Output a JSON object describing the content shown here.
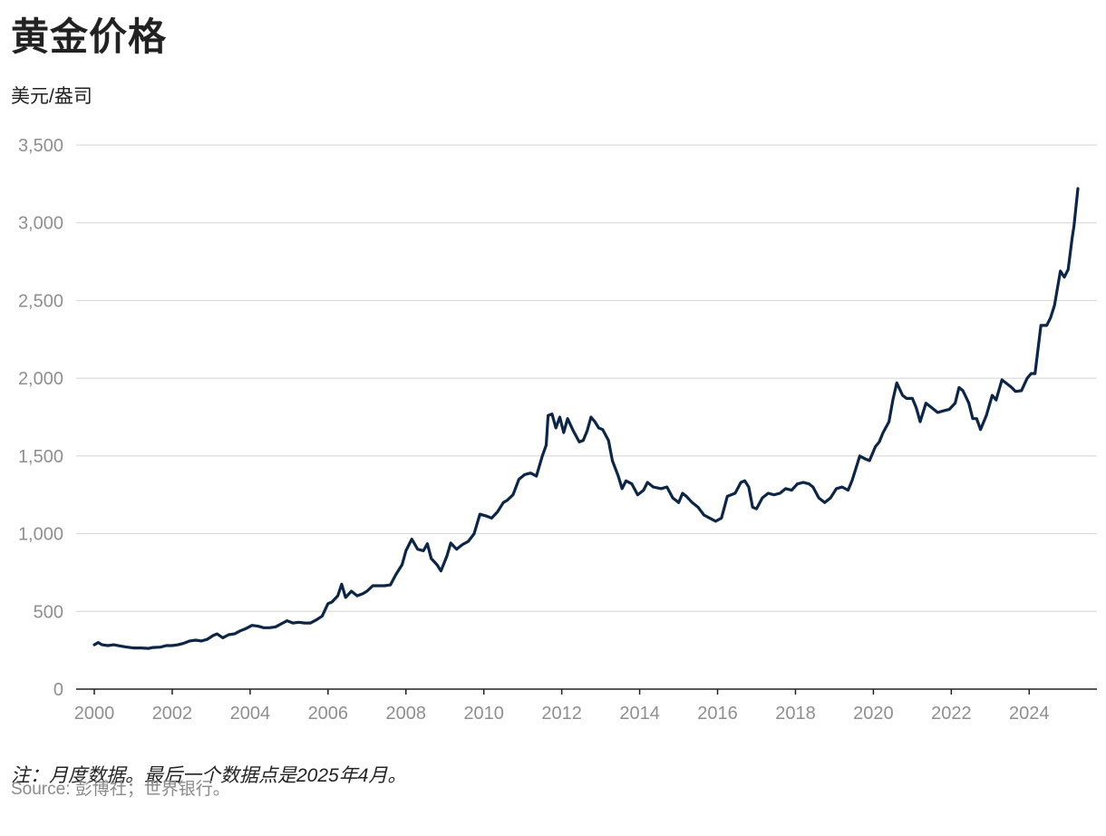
{
  "header": {
    "title": "黄金价格",
    "unit": "美元/盎司"
  },
  "footer": {
    "note": "注：月度数据。最后一个数据点是2025年4月。",
    "source_label": "Source:",
    "source_text": "彭博社；世界银行。"
  },
  "colors": {
    "line": "#0d2645",
    "grid": "#dcdcdc",
    "axis": "#222222",
    "tick_text": "#8f8f8f"
  },
  "chart_data": {
    "type": "line",
    "title": "黄金价格",
    "ylabel": "美元/盎司",
    "xlabel": "",
    "xlim": [
      2000.0,
      2025.25
    ],
    "ylim": [
      0,
      3500
    ],
    "x_ticks": [
      2000,
      2002,
      2004,
      2006,
      2008,
      2010,
      2012,
      2014,
      2016,
      2018,
      2020,
      2022,
      2024
    ],
    "y_ticks": [
      {
        "value": 0,
        "label": "0"
      },
      {
        "value": 500,
        "label": "500"
      },
      {
        "value": 1000,
        "label": "1,000"
      },
      {
        "value": 1500,
        "label": "1,500"
      },
      {
        "value": 2000,
        "label": "2,000"
      },
      {
        "value": 2500,
        "label": "2,500"
      },
      {
        "value": 3000,
        "label": "3,000"
      },
      {
        "value": 3500,
        "label": "3,500"
      }
    ],
    "grid": true,
    "legend": "none",
    "series": [
      {
        "name": "黄金价格",
        "points": [
          [
            2000.0,
            285
          ],
          [
            2000.1,
            300
          ],
          [
            2000.2,
            285
          ],
          [
            2000.35,
            280
          ],
          [
            2000.5,
            285
          ],
          [
            2000.65,
            278
          ],
          [
            2000.8,
            272
          ],
          [
            2001.0,
            265
          ],
          [
            2001.2,
            265
          ],
          [
            2001.4,
            262
          ],
          [
            2001.5,
            268
          ],
          [
            2001.7,
            270
          ],
          [
            2001.85,
            280
          ],
          [
            2002.0,
            280
          ],
          [
            2002.15,
            285
          ],
          [
            2002.3,
            295
          ],
          [
            2002.45,
            310
          ],
          [
            2002.6,
            315
          ],
          [
            2002.75,
            310
          ],
          [
            2002.9,
            320
          ],
          [
            2003.05,
            345
          ],
          [
            2003.15,
            355
          ],
          [
            2003.3,
            330
          ],
          [
            2003.45,
            350
          ],
          [
            2003.6,
            355
          ],
          [
            2003.75,
            375
          ],
          [
            2003.9,
            390
          ],
          [
            2004.05,
            410
          ],
          [
            2004.2,
            405
          ],
          [
            2004.35,
            395
          ],
          [
            2004.5,
            395
          ],
          [
            2004.65,
            400
          ],
          [
            2004.8,
            420
          ],
          [
            2004.95,
            440
          ],
          [
            2005.1,
            425
          ],
          [
            2005.25,
            430
          ],
          [
            2005.4,
            425
          ],
          [
            2005.55,
            425
          ],
          [
            2005.7,
            445
          ],
          [
            2005.85,
            470
          ],
          [
            2006.0,
            550
          ],
          [
            2006.1,
            560
          ],
          [
            2006.25,
            600
          ],
          [
            2006.35,
            675
          ],
          [
            2006.45,
            590
          ],
          [
            2006.6,
            630
          ],
          [
            2006.75,
            600
          ],
          [
            2006.9,
            615
          ],
          [
            2007.0,
            630
          ],
          [
            2007.15,
            665
          ],
          [
            2007.3,
            665
          ],
          [
            2007.45,
            665
          ],
          [
            2007.6,
            670
          ],
          [
            2007.75,
            740
          ],
          [
            2007.9,
            800
          ],
          [
            2008.0,
            890
          ],
          [
            2008.15,
            965
          ],
          [
            2008.3,
            900
          ],
          [
            2008.45,
            890
          ],
          [
            2008.55,
            935
          ],
          [
            2008.65,
            840
          ],
          [
            2008.8,
            800
          ],
          [
            2008.9,
            760
          ],
          [
            2009.05,
            855
          ],
          [
            2009.15,
            940
          ],
          [
            2009.3,
            900
          ],
          [
            2009.45,
            930
          ],
          [
            2009.6,
            950
          ],
          [
            2009.75,
            1000
          ],
          [
            2009.9,
            1125
          ],
          [
            2010.05,
            1115
          ],
          [
            2010.2,
            1100
          ],
          [
            2010.35,
            1140
          ],
          [
            2010.5,
            1200
          ],
          [
            2010.6,
            1215
          ],
          [
            2010.75,
            1250
          ],
          [
            2010.9,
            1350
          ],
          [
            2011.05,
            1380
          ],
          [
            2011.2,
            1390
          ],
          [
            2011.35,
            1370
          ],
          [
            2011.5,
            1500
          ],
          [
            2011.6,
            1570
          ],
          [
            2011.65,
            1760
          ],
          [
            2011.75,
            1770
          ],
          [
            2011.85,
            1680
          ],
          [
            2011.95,
            1750
          ],
          [
            2012.05,
            1650
          ],
          [
            2012.15,
            1740
          ],
          [
            2012.3,
            1660
          ],
          [
            2012.45,
            1590
          ],
          [
            2012.55,
            1600
          ],
          [
            2012.65,
            1660
          ],
          [
            2012.75,
            1750
          ],
          [
            2012.85,
            1720
          ],
          [
            2012.95,
            1680
          ],
          [
            2013.05,
            1670
          ],
          [
            2013.2,
            1600
          ],
          [
            2013.3,
            1470
          ],
          [
            2013.45,
            1370
          ],
          [
            2013.55,
            1290
          ],
          [
            2013.65,
            1340
          ],
          [
            2013.8,
            1320
          ],
          [
            2013.95,
            1250
          ],
          [
            2014.1,
            1280
          ],
          [
            2014.2,
            1330
          ],
          [
            2014.35,
            1300
          ],
          [
            2014.55,
            1290
          ],
          [
            2014.7,
            1300
          ],
          [
            2014.85,
            1230
          ],
          [
            2015.0,
            1200
          ],
          [
            2015.1,
            1260
          ],
          [
            2015.2,
            1240
          ],
          [
            2015.35,
            1200
          ],
          [
            2015.5,
            1170
          ],
          [
            2015.65,
            1120
          ],
          [
            2015.8,
            1100
          ],
          [
            2015.95,
            1080
          ],
          [
            2016.1,
            1100
          ],
          [
            2016.25,
            1240
          ],
          [
            2016.45,
            1260
          ],
          [
            2016.6,
            1330
          ],
          [
            2016.7,
            1340
          ],
          [
            2016.8,
            1300
          ],
          [
            2016.9,
            1170
          ],
          [
            2017.0,
            1160
          ],
          [
            2017.15,
            1230
          ],
          [
            2017.3,
            1260
          ],
          [
            2017.45,
            1250
          ],
          [
            2017.6,
            1260
          ],
          [
            2017.75,
            1290
          ],
          [
            2017.9,
            1280
          ],
          [
            2018.05,
            1320
          ],
          [
            2018.2,
            1330
          ],
          [
            2018.35,
            1320
          ],
          [
            2018.45,
            1300
          ],
          [
            2018.6,
            1230
          ],
          [
            2018.75,
            1200
          ],
          [
            2018.9,
            1230
          ],
          [
            2019.05,
            1290
          ],
          [
            2019.2,
            1300
          ],
          [
            2019.35,
            1280
          ],
          [
            2019.45,
            1340
          ],
          [
            2019.55,
            1420
          ],
          [
            2019.65,
            1500
          ],
          [
            2019.8,
            1480
          ],
          [
            2019.9,
            1470
          ],
          [
            2020.05,
            1560
          ],
          [
            2020.15,
            1590
          ],
          [
            2020.25,
            1650
          ],
          [
            2020.4,
            1720
          ],
          [
            2020.5,
            1860
          ],
          [
            2020.6,
            1970
          ],
          [
            2020.75,
            1890
          ],
          [
            2020.85,
            1870
          ],
          [
            2021.0,
            1870
          ],
          [
            2021.1,
            1810
          ],
          [
            2021.2,
            1720
          ],
          [
            2021.35,
            1840
          ],
          [
            2021.5,
            1810
          ],
          [
            2021.65,
            1780
          ],
          [
            2021.8,
            1790
          ],
          [
            2021.95,
            1800
          ],
          [
            2022.1,
            1840
          ],
          [
            2022.2,
            1940
          ],
          [
            2022.3,
            1920
          ],
          [
            2022.45,
            1840
          ],
          [
            2022.55,
            1740
          ],
          [
            2022.65,
            1740
          ],
          [
            2022.75,
            1670
          ],
          [
            2022.9,
            1760
          ],
          [
            2023.05,
            1890
          ],
          [
            2023.15,
            1860
          ],
          [
            2023.3,
            1990
          ],
          [
            2023.45,
            1960
          ],
          [
            2023.55,
            1940
          ],
          [
            2023.65,
            1915
          ],
          [
            2023.8,
            1920
          ],
          [
            2023.95,
            2000
          ],
          [
            2024.05,
            2030
          ],
          [
            2024.15,
            2030
          ],
          [
            2024.3,
            2340
          ],
          [
            2024.45,
            2340
          ],
          [
            2024.55,
            2390
          ],
          [
            2024.65,
            2470
          ],
          [
            2024.8,
            2690
          ],
          [
            2024.9,
            2650
          ],
          [
            2025.0,
            2700
          ],
          [
            2025.1,
            2900
          ],
          [
            2025.15,
            2980
          ],
          [
            2025.25,
            3220
          ]
        ]
      }
    ]
  }
}
